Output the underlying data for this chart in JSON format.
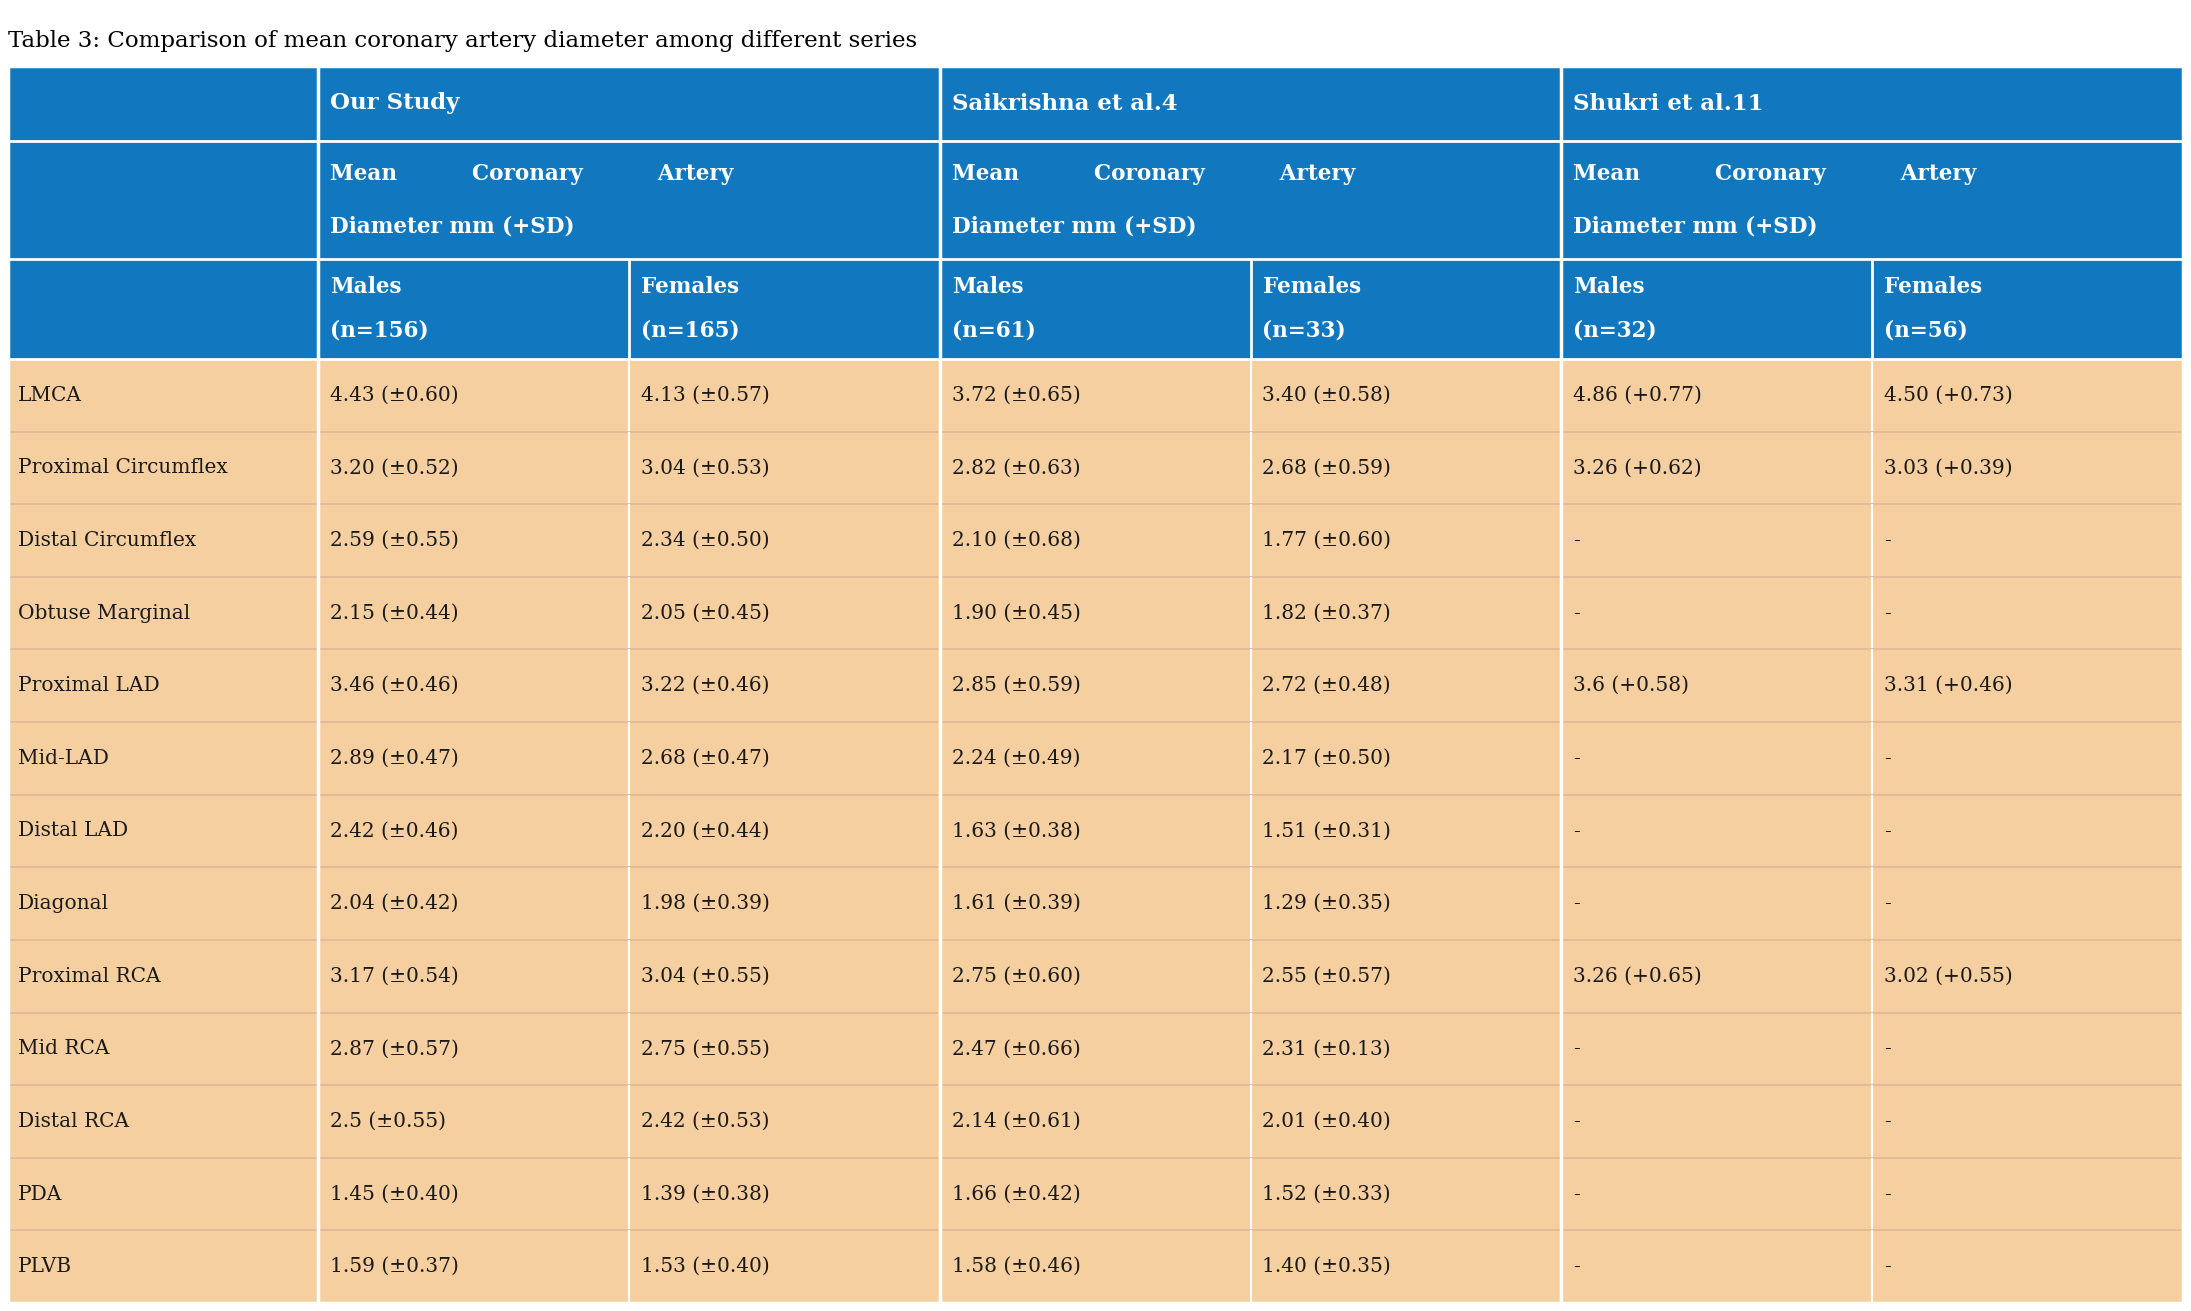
{
  "title": "Table 3: Comparison of mean coronary artery diameter among different series",
  "header_bg": "#1178C0",
  "body_bg": "#F5CFA0",
  "header_text": "#FFFFFF",
  "body_text": "#1a1a1a",
  "col_groups": [
    "Our Study",
    "Saikrishna et al.4",
    "Shukri et al.11"
  ],
  "sub_header2": [
    "Males\n(n=156)",
    "Females\n(n=165)",
    "Males\n(n=61)",
    "Females\n(n=33)",
    "Males\n(n=32)",
    "Females\n(n=56)"
  ],
  "row_labels": [
    "LMCA",
    "Proximal Circumflex",
    "Distal Circumflex",
    "Obtuse Marginal",
    "Proximal LAD",
    "Mid-LAD",
    "Distal LAD",
    "Diagonal",
    "Proximal RCA",
    "Mid RCA",
    "Distal RCA",
    "PDA",
    "PLVB"
  ],
  "data": [
    [
      "4.43 (±0.60)",
      "4.13 (±0.57)",
      "3.72 (±0.65)",
      "3.40 (±0.58)",
      "4.86 (+0.77)",
      "4.50 (+0.73)"
    ],
    [
      "3.20 (±0.52)",
      "3.04 (±0.53)",
      "2.82 (±0.63)",
      "2.68 (±0.59)",
      "3.26 (+0.62)",
      "3.03 (+0.39)"
    ],
    [
      "2.59 (±0.55)",
      "2.34 (±0.50)",
      "2.10 (±0.68)",
      "1.77 (±0.60)",
      "-",
      "-"
    ],
    [
      "2.15 (±0.44)",
      "2.05 (±0.45)",
      "1.90 (±0.45)",
      "1.82 (±0.37)",
      "-",
      "-"
    ],
    [
      "3.46 (±0.46)",
      "3.22 (±0.46)",
      "2.85 (±0.59)",
      "2.72 (±0.48)",
      "3.6 (+0.58)",
      "3.31 (+0.46)"
    ],
    [
      "2.89 (±0.47)",
      "2.68 (±0.47)",
      "2.24 (±0.49)",
      "2.17 (±0.50)",
      "-",
      "-"
    ],
    [
      "2.42 (±0.46)",
      "2.20 (±0.44)",
      "1.63 (±0.38)",
      "1.51 (±0.31)",
      "-",
      "-"
    ],
    [
      "2.04 (±0.42)",
      "1.98 (±0.39)",
      "1.61 (±0.39)",
      "1.29 (±0.35)",
      "-",
      "-"
    ],
    [
      "3.17 (±0.54)",
      "3.04 (±0.55)",
      "2.75 (±0.60)",
      "2.55 (±0.57)",
      "3.26 (+0.65)",
      "3.02 (+0.55)"
    ],
    [
      "2.87 (±0.57)",
      "2.75 (±0.55)",
      "2.47 (±0.66)",
      "2.31 (±0.13)",
      "-",
      "-"
    ],
    [
      "2.5 (±0.55)",
      "2.42 (±0.53)",
      "2.14 (±0.61)",
      "2.01 (±0.40)",
      "-",
      "-"
    ],
    [
      "1.45 (±0.40)",
      "1.39 (±0.38)",
      "1.66 (±0.42)",
      "1.52 (±0.33)",
      "-",
      "-"
    ],
    [
      "1.59 (±0.37)",
      "1.53 (±0.40)",
      "1.58 (±0.46)",
      "1.40 (±0.35)",
      "-",
      "-"
    ]
  ],
  "mean_coronary_line1": "Mean          Coronary          Artery",
  "mean_coronary_line2": "Diameter mm (+SD)"
}
